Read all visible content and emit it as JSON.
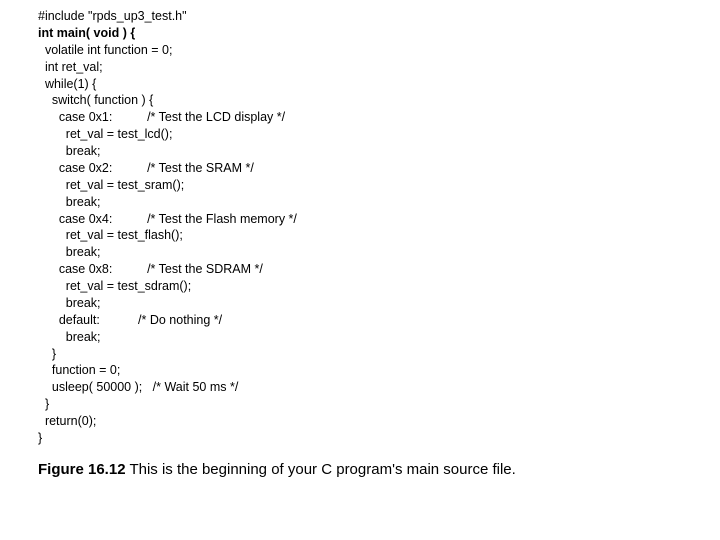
{
  "code": {
    "line1": "#include \"rpds_up3_test.h\"",
    "line2": "int main( void ) {",
    "line3": "  volatile int function = 0;",
    "line4": "  int ret_val;",
    "line5": "  while(1) {",
    "line6": "    switch( function ) {",
    "line7": "      case 0x1:          /* Test the LCD display */",
    "line8": "        ret_val = test_lcd();",
    "line9": "        break;",
    "line10": "      case 0x2:          /* Test the SRAM */",
    "line11": "        ret_val = test_sram();",
    "line12": "        break;",
    "line13": "      case 0x4:          /* Test the Flash memory */",
    "line14": "        ret_val = test_flash();",
    "line15": "        break;",
    "line16": "      case 0x8:          /* Test the SDRAM */",
    "line17": "        ret_val = test_sdram();",
    "line18": "        break;",
    "line19": "      default:           /* Do nothing */",
    "line20": "        break;",
    "line21": "    }",
    "line22": "    function = 0;",
    "line23": "    usleep( 50000 );   /* Wait 50 ms */",
    "line24": "  }",
    "line25": "  return(0);",
    "line26": "}"
  },
  "caption": {
    "fignum": "Figure 16.12",
    "text": " This is the beginning of your C program's main source file."
  },
  "style": {
    "background_color": "#ffffff",
    "text_color": "#000000",
    "code_fontsize": 12.5,
    "caption_fontsize": 15
  }
}
